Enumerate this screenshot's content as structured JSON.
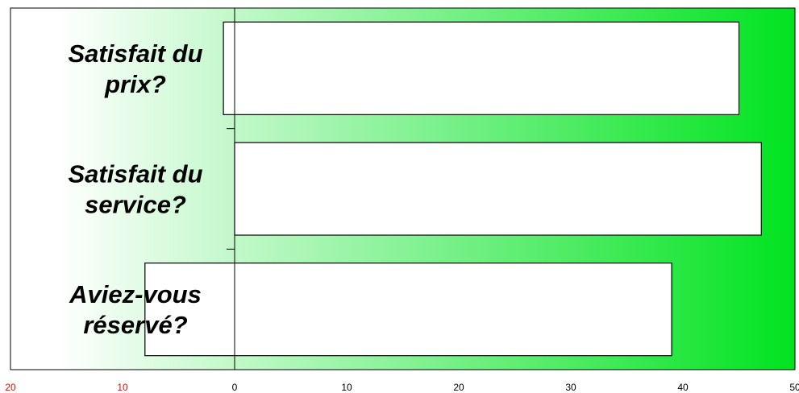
{
  "chart_data": {
    "type": "bar",
    "orientation": "horizontal",
    "categories": [
      "Satisfait du prix?",
      "Satisfait du service?",
      "Aviez-vous réservé?"
    ],
    "category_label_lines": [
      [
        "Satisfait du",
        "prix?"
      ],
      [
        "Satisfait du",
        "service?"
      ],
      [
        "Aviez-vous",
        "réservé?"
      ]
    ],
    "series": [
      {
        "values": [
          -1,
          0,
          -8
        ],
        "note": "negative side"
      },
      {
        "values": [
          45,
          47,
          39
        ],
        "note": "positive side"
      }
    ],
    "xlim": [
      -20,
      50
    ],
    "xticks": [
      -20,
      -10,
      0,
      10,
      20,
      30,
      40,
      50
    ],
    "xtick_labels": [
      "20",
      "10",
      "0",
      "10",
      "20",
      "30",
      "40",
      "50"
    ],
    "negative_tick_color": "#ff0000",
    "positive_tick_color": "#000000",
    "bar_fill": "#ffffff",
    "bar_stroke": "#000000",
    "background_gradient": [
      "#ffffff",
      "#00e31f"
    ],
    "grid": false,
    "title": "",
    "xlabel": "",
    "ylabel": ""
  }
}
